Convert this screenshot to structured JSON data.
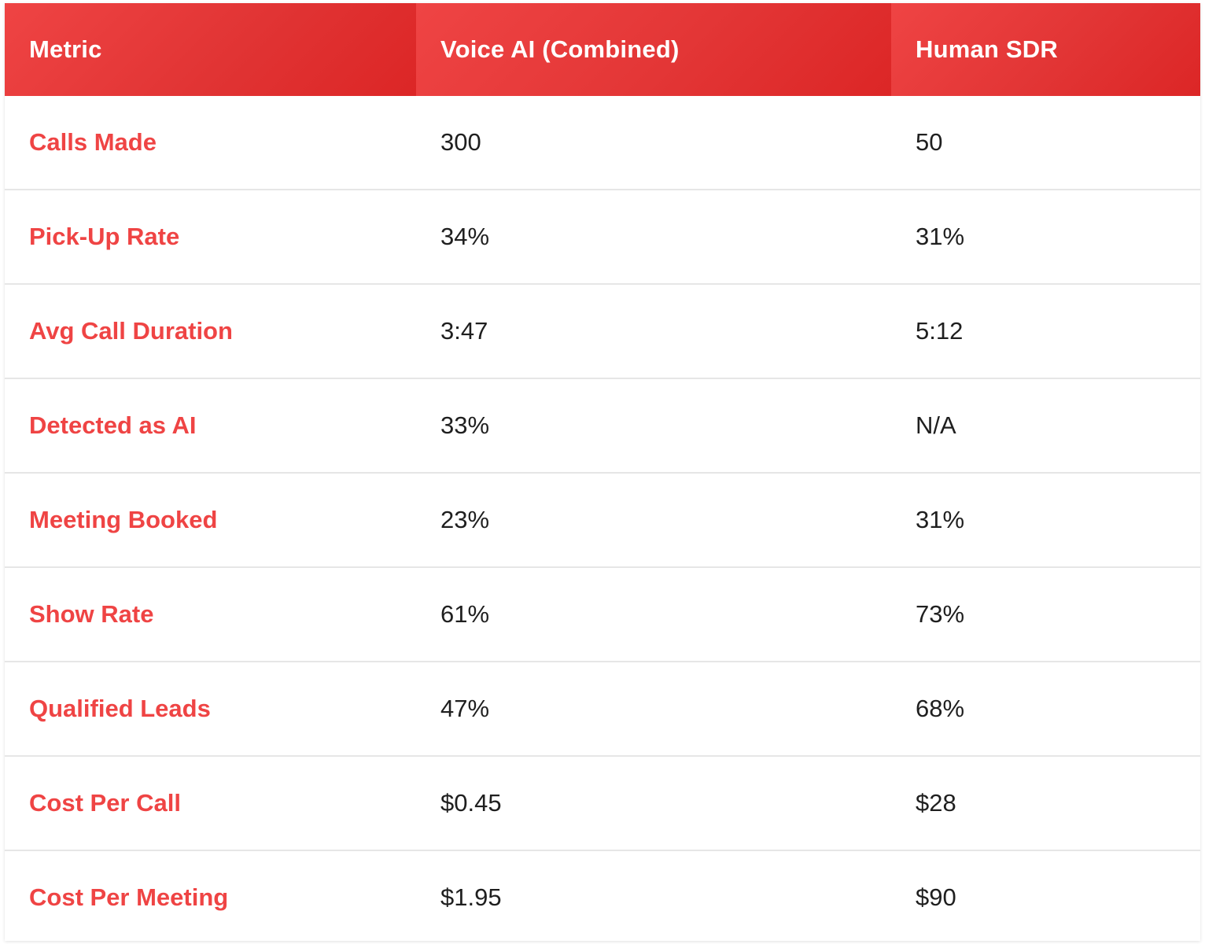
{
  "colors": {
    "header_start": "#ef4444",
    "header_end": "#dc2626",
    "metric_text": "#ef4444",
    "value_text": "#1f1f1f",
    "row_divider": "#e6e6e6"
  },
  "table": {
    "headers": [
      "Metric",
      "Voice AI (Combined)",
      "Human SDR"
    ],
    "rows": [
      {
        "metric": "Calls Made",
        "voice_ai": "300",
        "human_sdr": "50"
      },
      {
        "metric": "Pick-Up Rate",
        "voice_ai": "34%",
        "human_sdr": "31%"
      },
      {
        "metric": "Avg Call Duration",
        "voice_ai": "3:47",
        "human_sdr": "5:12"
      },
      {
        "metric": "Detected as AI",
        "voice_ai": "33%",
        "human_sdr": "N/A"
      },
      {
        "metric": "Meeting Booked",
        "voice_ai": "23%",
        "human_sdr": "31%"
      },
      {
        "metric": "Show Rate",
        "voice_ai": "61%",
        "human_sdr": "73%"
      },
      {
        "metric": "Qualified Leads",
        "voice_ai": "47%",
        "human_sdr": "68%"
      },
      {
        "metric": "Cost Per Call",
        "voice_ai": "$0.45",
        "human_sdr": "$28"
      },
      {
        "metric": "Cost Per Meeting",
        "voice_ai": "$1.95",
        "human_sdr": "$90"
      }
    ]
  }
}
